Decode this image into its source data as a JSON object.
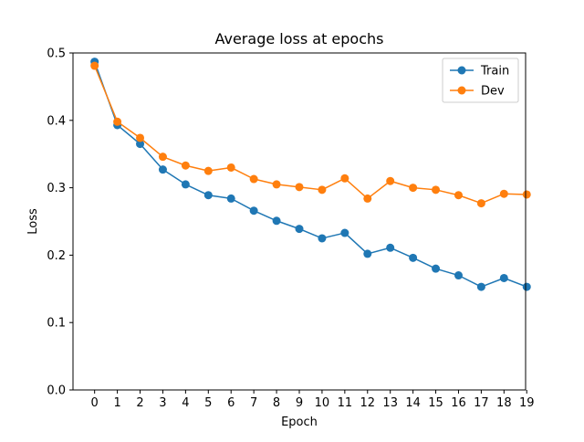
{
  "chart_data": {
    "type": "line",
    "title": "Average loss at epochs",
    "xlabel": "Epoch",
    "ylabel": "Loss",
    "x": [
      0,
      1,
      2,
      3,
      4,
      5,
      6,
      7,
      8,
      9,
      10,
      11,
      12,
      13,
      14,
      15,
      16,
      17,
      18,
      19
    ],
    "x_ticks": [
      "0",
      "1",
      "2",
      "3",
      "4",
      "5",
      "6",
      "7",
      "8",
      "9",
      "10",
      "11",
      "12",
      "13",
      "14",
      "15",
      "16",
      "17",
      "18",
      "19"
    ],
    "y_ticks": [
      "0.0",
      "0.1",
      "0.2",
      "0.3",
      "0.4",
      "0.5"
    ],
    "xlim": [
      -0.95,
      18.95
    ],
    "ylim": [
      0.0,
      0.5
    ],
    "grid": false,
    "legend_position": "upper right",
    "series": [
      {
        "name": "Train",
        "color": "#1f77b4",
        "marker": "circle",
        "values": [
          0.487,
          0.393,
          0.365,
          0.327,
          0.305,
          0.289,
          0.284,
          0.266,
          0.251,
          0.239,
          0.225,
          0.233,
          0.202,
          0.211,
          0.196,
          0.18,
          0.17,
          0.153,
          0.166,
          0.153
        ]
      },
      {
        "name": "Dev",
        "color": "#ff7f0e",
        "marker": "circle",
        "values": [
          0.481,
          0.398,
          0.374,
          0.346,
          0.333,
          0.325,
          0.33,
          0.313,
          0.305,
          0.301,
          0.297,
          0.314,
          0.284,
          0.31,
          0.3,
          0.297,
          0.289,
          0.277,
          0.291,
          0.29
        ]
      }
    ]
  }
}
